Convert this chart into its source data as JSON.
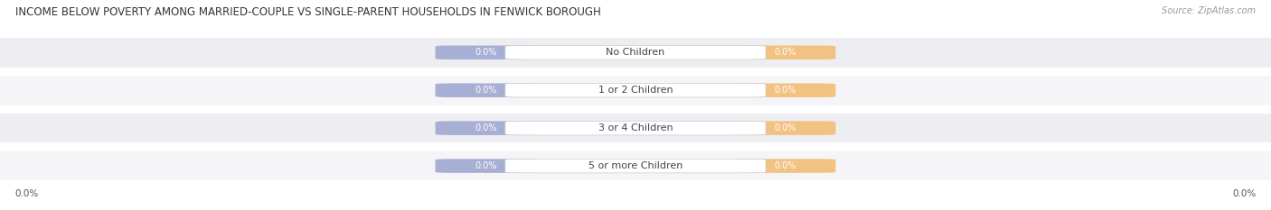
{
  "title": "INCOME BELOW POVERTY AMONG MARRIED-COUPLE VS SINGLE-PARENT HOUSEHOLDS IN FENWICK BOROUGH",
  "source": "Source: ZipAtlas.com",
  "categories": [
    "No Children",
    "1 or 2 Children",
    "3 or 4 Children",
    "5 or more Children"
  ],
  "married_values": [
    0.0,
    0.0,
    0.0,
    0.0
  ],
  "single_values": [
    0.0,
    0.0,
    0.0,
    0.0
  ],
  "married_color": "#a8afd4",
  "single_color": "#f2c282",
  "row_bg_even": "#ededf2",
  "row_bg_odd": "#f5f5f8",
  "title_fontsize": 8.5,
  "source_fontsize": 7,
  "value_fontsize": 7,
  "category_fontsize": 8,
  "legend_fontsize": 8,
  "axis_label": "0.0%",
  "background_color": "#ffffff"
}
